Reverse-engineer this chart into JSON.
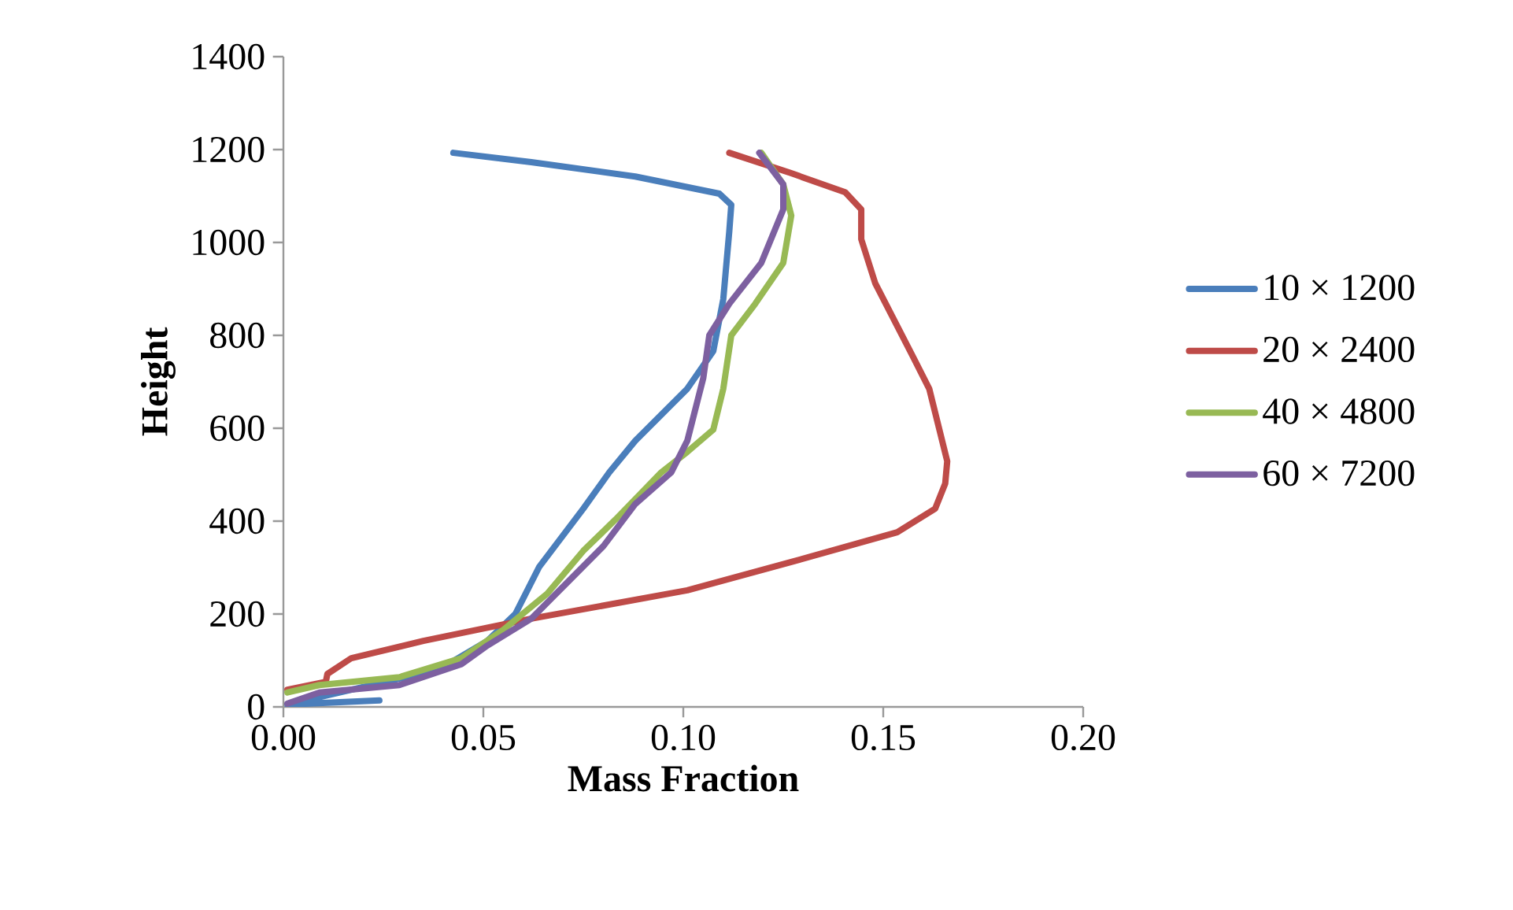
{
  "chart_data": {
    "type": "line",
    "xlabel": "Mass Fraction",
    "ylabel": "Height",
    "xlim": [
      0,
      0.2
    ],
    "ylim": [
      0,
      1400
    ],
    "xticks": [
      {
        "value": 0,
        "label": "0.00"
      },
      {
        "value": 0.05,
        "label": "0.05"
      },
      {
        "value": 0.1,
        "label": "0.10"
      },
      {
        "value": 0.15,
        "label": "0.15"
      },
      {
        "value": 0.2,
        "label": "0.20"
      }
    ],
    "yticks": [
      0,
      200,
      400,
      600,
      800,
      1000,
      1200,
      1400
    ],
    "grid": false,
    "legend": "right",
    "marker": "none",
    "line_style": "solid",
    "series": [
      {
        "name": "10 × 1200",
        "color": "#4a7ebb",
        "x": [
          0.024,
          0.001,
          0.039,
          0.051,
          0.058,
          0.064,
          0.075,
          0.0815,
          0.088,
          0.101,
          0.1075,
          0.11,
          0.1115,
          0.112,
          0.109,
          0.088,
          0.062,
          0.0425
        ],
        "values": [
          14,
          5,
          81,
          142,
          200,
          302,
          427,
          505,
          573,
          685,
          766,
          878,
          1024,
          1081,
          1105,
          1142,
          1173,
          1193
        ]
      },
      {
        "name": "20 × 2400",
        "color": "#be4b48",
        "x": [
          0.001,
          0.0106,
          0.011,
          0.017,
          0.035,
          0.062,
          0.101,
          0.127,
          0.1535,
          0.163,
          0.1655,
          0.166,
          0.1615,
          0.1575,
          0.148,
          0.1445,
          0.1445,
          0.1405,
          0.127,
          0.1115
        ],
        "values": [
          37,
          54,
          71,
          105,
          142,
          190,
          251,
          312,
          376,
          427,
          481,
          529,
          685,
          753,
          912,
          1007,
          1071,
          1108,
          1149,
          1193
        ]
      },
      {
        "name": "40 × 4800",
        "color": "#98b954",
        "x": [
          0.001,
          0.009,
          0.029,
          0.0445,
          0.055,
          0.066,
          0.075,
          0.083,
          0.0945,
          0.101,
          0.1075,
          0.11,
          0.112,
          0.118,
          0.125,
          0.127,
          0.125,
          0.1195
        ],
        "values": [
          31,
          47,
          64,
          105,
          166,
          244,
          336,
          403,
          505,
          549,
          597,
          685,
          800,
          868,
          956,
          1058,
          1125,
          1193
        ]
      },
      {
        "name": "60 × 7200",
        "color": "#7d60a0",
        "x": [
          0.001,
          0.009,
          0.029,
          0.0445,
          0.051,
          0.062,
          0.071,
          0.08,
          0.088,
          0.097,
          0.101,
          0.105,
          0.1065,
          0.1115,
          0.1195,
          0.125,
          0.125,
          0.119
        ],
        "values": [
          7,
          31,
          47,
          92,
          132,
          190,
          268,
          346,
          437,
          505,
          573,
          708,
          800,
          868,
          956,
          1071,
          1125,
          1193
        ]
      }
    ]
  }
}
